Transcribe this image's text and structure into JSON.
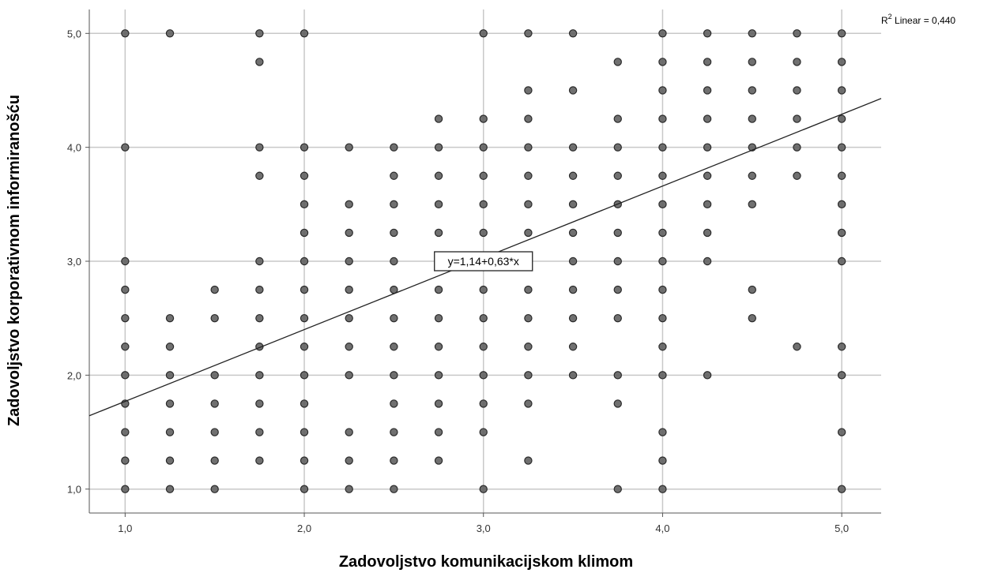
{
  "chart_data": {
    "type": "scatter",
    "title": "",
    "xlabel": "Zadovoljstvo komunikacijskom klimom",
    "ylabel": "Zadovoljstvo korporativnom informiranošću",
    "xlim": [
      0.8,
      5.22
    ],
    "ylim": [
      0.79,
      5.21
    ],
    "x_ticks": [
      "1,0",
      "2,0",
      "3,0",
      "4,0",
      "5,0"
    ],
    "y_ticks": [
      "1,0",
      "2,0",
      "3,0",
      "4,0",
      "5,0"
    ],
    "grid": true,
    "colors": {
      "point_fill": "#606060",
      "point_stroke": "#2a2a2a",
      "grid": "#c8c8c8",
      "line": "#222222"
    },
    "fit_line": {
      "intercept": 1.14,
      "slope": 0.63,
      "label": "y=1,14+0,63*x",
      "label_at": [
        3.0,
        3.0
      ]
    },
    "r2_label": {
      "prefix": "R",
      "superscript": "2",
      "text": " Linear = 0,440"
    },
    "points": [
      [
        1.0,
        5.0
      ],
      [
        1.0,
        4.0
      ],
      [
        1.0,
        3.0
      ],
      [
        1.0,
        2.75
      ],
      [
        1.0,
        2.5
      ],
      [
        1.0,
        2.25
      ],
      [
        1.0,
        2.0
      ],
      [
        1.0,
        1.75
      ],
      [
        1.0,
        1.5
      ],
      [
        1.0,
        1.25
      ],
      [
        1.0,
        1.0
      ],
      [
        1.25,
        5.0
      ],
      [
        1.25,
        2.5
      ],
      [
        1.25,
        2.25
      ],
      [
        1.25,
        2.0
      ],
      [
        1.25,
        1.75
      ],
      [
        1.25,
        1.5
      ],
      [
        1.25,
        1.25
      ],
      [
        1.25,
        1.0
      ],
      [
        1.5,
        2.75
      ],
      [
        1.5,
        2.5
      ],
      [
        1.5,
        2.0
      ],
      [
        1.5,
        1.75
      ],
      [
        1.5,
        1.5
      ],
      [
        1.5,
        1.25
      ],
      [
        1.5,
        1.0
      ],
      [
        1.75,
        5.0
      ],
      [
        1.75,
        4.75
      ],
      [
        1.75,
        4.0
      ],
      [
        1.75,
        3.75
      ],
      [
        1.75,
        3.0
      ],
      [
        1.75,
        2.75
      ],
      [
        1.75,
        2.5
      ],
      [
        1.75,
        2.25
      ],
      [
        1.75,
        2.0
      ],
      [
        1.75,
        1.75
      ],
      [
        1.75,
        1.5
      ],
      [
        1.75,
        1.25
      ],
      [
        2.0,
        5.0
      ],
      [
        2.0,
        4.0
      ],
      [
        2.0,
        3.75
      ],
      [
        2.0,
        3.5
      ],
      [
        2.0,
        3.25
      ],
      [
        2.0,
        3.0
      ],
      [
        2.0,
        2.75
      ],
      [
        2.0,
        2.5
      ],
      [
        2.0,
        2.25
      ],
      [
        2.0,
        2.0
      ],
      [
        2.0,
        1.75
      ],
      [
        2.0,
        1.5
      ],
      [
        2.0,
        1.25
      ],
      [
        2.0,
        1.0
      ],
      [
        2.25,
        4.0
      ],
      [
        2.25,
        3.5
      ],
      [
        2.25,
        3.25
      ],
      [
        2.25,
        3.0
      ],
      [
        2.25,
        2.75
      ],
      [
        2.25,
        2.5
      ],
      [
        2.25,
        2.25
      ],
      [
        2.25,
        2.0
      ],
      [
        2.25,
        1.5
      ],
      [
        2.25,
        1.25
      ],
      [
        2.25,
        1.0
      ],
      [
        2.5,
        4.0
      ],
      [
        2.5,
        3.75
      ],
      [
        2.5,
        3.5
      ],
      [
        2.5,
        3.25
      ],
      [
        2.5,
        3.0
      ],
      [
        2.5,
        2.75
      ],
      [
        2.5,
        2.5
      ],
      [
        2.5,
        2.25
      ],
      [
        2.5,
        2.0
      ],
      [
        2.5,
        1.75
      ],
      [
        2.5,
        1.5
      ],
      [
        2.5,
        1.25
      ],
      [
        2.5,
        1.0
      ],
      [
        2.75,
        4.25
      ],
      [
        2.75,
        4.0
      ],
      [
        2.75,
        3.75
      ],
      [
        2.75,
        3.5
      ],
      [
        2.75,
        3.25
      ],
      [
        2.75,
        2.75
      ],
      [
        2.75,
        2.5
      ],
      [
        2.75,
        2.25
      ],
      [
        2.75,
        2.0
      ],
      [
        2.75,
        1.75
      ],
      [
        2.75,
        1.5
      ],
      [
        2.75,
        1.25
      ],
      [
        3.0,
        5.0
      ],
      [
        3.0,
        4.25
      ],
      [
        3.0,
        4.0
      ],
      [
        3.0,
        3.75
      ],
      [
        3.0,
        3.5
      ],
      [
        3.0,
        3.25
      ],
      [
        3.0,
        2.75
      ],
      [
        3.0,
        2.5
      ],
      [
        3.0,
        2.25
      ],
      [
        3.0,
        2.0
      ],
      [
        3.0,
        1.75
      ],
      [
        3.0,
        1.5
      ],
      [
        3.0,
        1.0
      ],
      [
        3.25,
        5.0
      ],
      [
        3.25,
        4.5
      ],
      [
        3.25,
        4.25
      ],
      [
        3.25,
        4.0
      ],
      [
        3.25,
        3.75
      ],
      [
        3.25,
        3.5
      ],
      [
        3.25,
        3.25
      ],
      [
        3.25,
        3.0
      ],
      [
        3.25,
        2.75
      ],
      [
        3.25,
        2.5
      ],
      [
        3.25,
        2.25
      ],
      [
        3.25,
        2.0
      ],
      [
        3.25,
        1.75
      ],
      [
        3.25,
        1.25
      ],
      [
        3.5,
        5.0
      ],
      [
        3.5,
        4.5
      ],
      [
        3.5,
        4.0
      ],
      [
        3.5,
        3.75
      ],
      [
        3.5,
        3.5
      ],
      [
        3.5,
        3.25
      ],
      [
        3.5,
        3.0
      ],
      [
        3.5,
        2.75
      ],
      [
        3.5,
        2.5
      ],
      [
        3.5,
        2.25
      ],
      [
        3.5,
        2.0
      ],
      [
        3.75,
        4.75
      ],
      [
        3.75,
        4.25
      ],
      [
        3.75,
        4.0
      ],
      [
        3.75,
        3.75
      ],
      [
        3.75,
        3.5
      ],
      [
        3.75,
        3.25
      ],
      [
        3.75,
        3.0
      ],
      [
        3.75,
        2.75
      ],
      [
        3.75,
        2.5
      ],
      [
        3.75,
        2.0
      ],
      [
        3.75,
        1.75
      ],
      [
        3.75,
        1.0
      ],
      [
        4.0,
        5.0
      ],
      [
        4.0,
        4.75
      ],
      [
        4.0,
        4.5
      ],
      [
        4.0,
        4.25
      ],
      [
        4.0,
        4.0
      ],
      [
        4.0,
        3.75
      ],
      [
        4.0,
        3.5
      ],
      [
        4.0,
        3.25
      ],
      [
        4.0,
        3.0
      ],
      [
        4.0,
        2.75
      ],
      [
        4.0,
        2.5
      ],
      [
        4.0,
        2.25
      ],
      [
        4.0,
        2.0
      ],
      [
        4.0,
        1.5
      ],
      [
        4.0,
        1.25
      ],
      [
        4.0,
        1.0
      ],
      [
        4.25,
        5.0
      ],
      [
        4.25,
        4.75
      ],
      [
        4.25,
        4.5
      ],
      [
        4.25,
        4.25
      ],
      [
        4.25,
        4.0
      ],
      [
        4.25,
        3.75
      ],
      [
        4.25,
        3.5
      ],
      [
        4.25,
        3.25
      ],
      [
        4.25,
        3.0
      ],
      [
        4.25,
        2.0
      ],
      [
        4.5,
        5.0
      ],
      [
        4.5,
        4.75
      ],
      [
        4.5,
        4.5
      ],
      [
        4.5,
        4.25
      ],
      [
        4.5,
        4.0
      ],
      [
        4.5,
        3.75
      ],
      [
        4.5,
        3.5
      ],
      [
        4.5,
        2.75
      ],
      [
        4.5,
        2.5
      ],
      [
        4.75,
        5.0
      ],
      [
        4.75,
        4.75
      ],
      [
        4.75,
        4.5
      ],
      [
        4.75,
        4.25
      ],
      [
        4.75,
        4.0
      ],
      [
        4.75,
        3.75
      ],
      [
        4.75,
        2.25
      ],
      [
        5.0,
        5.0
      ],
      [
        5.0,
        4.75
      ],
      [
        5.0,
        4.5
      ],
      [
        5.0,
        4.25
      ],
      [
        5.0,
        4.0
      ],
      [
        5.0,
        3.75
      ],
      [
        5.0,
        3.5
      ],
      [
        5.0,
        3.25
      ],
      [
        5.0,
        3.0
      ],
      [
        5.0,
        2.25
      ],
      [
        5.0,
        2.0
      ],
      [
        5.0,
        1.5
      ],
      [
        5.0,
        1.0
      ]
    ]
  }
}
